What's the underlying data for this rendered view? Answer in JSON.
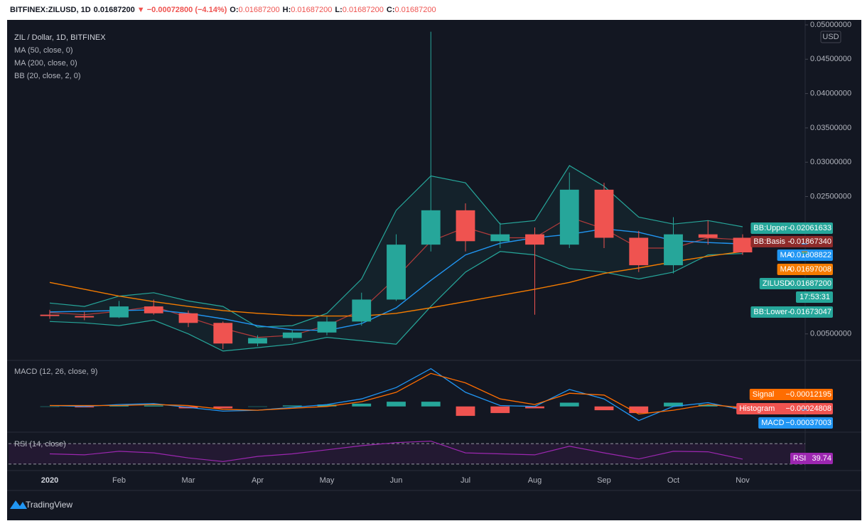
{
  "header": {
    "symbol": "BITFINEX:ZILUSD, 1D",
    "price": "0.01687200",
    "change": "▼ −0.00072800 (−4.14%)",
    "ohlc": [
      {
        "key": "O:",
        "value": "0.01687200"
      },
      {
        "key": "H:",
        "value": "0.01687200"
      },
      {
        "key": "L:",
        "value": "0.01687200"
      },
      {
        "key": "C:",
        "value": "0.01687200"
      }
    ]
  },
  "brand": "TradingView",
  "chart_data": [
    {
      "type": "candlestick",
      "title": "ZIL / Dollar, 1D, BITFINEX",
      "currency": "USD",
      "categories": [
        "2020",
        null,
        "Feb",
        null,
        "Mar",
        null,
        "Apr",
        null,
        "May",
        null,
        "Jun",
        null,
        "Jul",
        null,
        "Aug",
        null,
        "Sep",
        null,
        "Oct",
        null,
        "Nov"
      ],
      "open": [
        0.0078,
        0.0076,
        0.0074,
        0.009,
        0.008,
        0.0066,
        0.0036,
        0.0044,
        0.0052,
        0.0068,
        0.01,
        0.018,
        0.023,
        0.0185,
        0.0195,
        0.018,
        0.026,
        0.019,
        0.015,
        0.0195,
        0.019
      ],
      "high": [
        0.0085,
        0.0082,
        0.0098,
        0.01,
        0.0084,
        0.0068,
        0.0048,
        0.0056,
        0.0075,
        0.011,
        0.0195,
        0.049,
        0.024,
        0.0212,
        0.0205,
        0.0285,
        0.027,
        0.02,
        0.022,
        0.0215,
        0.0195
      ],
      "low": [
        0.0072,
        0.007,
        0.0073,
        0.0078,
        0.006,
        0.0028,
        0.0032,
        0.004,
        0.0048,
        0.0062,
        0.0098,
        0.017,
        0.017,
        0.0175,
        0.0078,
        0.0175,
        0.0175,
        0.014,
        0.0138,
        0.018,
        0.0165
      ],
      "close": [
        0.0076,
        0.0074,
        0.009,
        0.008,
        0.0066,
        0.0036,
        0.0044,
        0.0052,
        0.0068,
        0.01,
        0.018,
        0.023,
        0.0185,
        0.0195,
        0.018,
        0.026,
        0.019,
        0.015,
        0.0195,
        0.019,
        0.016872
      ],
      "up_color": "#26a69a",
      "down_color": "#ef5350",
      "overlays": [
        {
          "name": "MA (50, close, 0)",
          "color": "#2196f3",
          "values": [
            0.0082,
            0.0083,
            0.0084,
            0.0085,
            0.008,
            0.0072,
            0.0062,
            0.0056,
            0.0055,
            0.0065,
            0.0088,
            0.0128,
            0.0165,
            0.0182,
            0.019,
            0.0195,
            0.0203,
            0.0198,
            0.0186,
            0.0183,
            0.0181
          ]
        },
        {
          "name": "MA (200, close, 0)",
          "color": "#f57c00",
          "values": [
            0.0125,
            0.0115,
            0.0105,
            0.0097,
            0.009,
            0.0084,
            0.008,
            0.0077,
            0.0076,
            0.0076,
            0.008,
            0.0088,
            0.0097,
            0.0106,
            0.0115,
            0.0125,
            0.0138,
            0.0146,
            0.0155,
            0.0163,
            0.017
          ]
        }
      ],
      "bands": {
        "name": "BB (20, close, 2, 0)",
        "color": "#26a69a",
        "basis_color": "#b23b3b",
        "upper": [
          0.0095,
          0.009,
          0.0105,
          0.011,
          0.0098,
          0.009,
          0.006,
          0.0062,
          0.008,
          0.013,
          0.023,
          0.028,
          0.027,
          0.021,
          0.0215,
          0.0295,
          0.0265,
          0.022,
          0.021,
          0.0215,
          0.0206
        ],
        "basis": [
          0.0081,
          0.0078,
          0.0083,
          0.009,
          0.0074,
          0.0058,
          0.0045,
          0.0048,
          0.0062,
          0.0085,
          0.0132,
          0.0185,
          0.0205,
          0.019,
          0.019,
          0.022,
          0.0203,
          0.0175,
          0.0175,
          0.019,
          0.0187
        ],
        "lower": [
          0.0068,
          0.0066,
          0.0062,
          0.007,
          0.005,
          0.0025,
          0.003,
          0.0035,
          0.0045,
          0.004,
          0.0035,
          0.009,
          0.014,
          0.017,
          0.0165,
          0.0145,
          0.014,
          0.013,
          0.014,
          0.0165,
          0.0167
        ]
      },
      "ylim": [
        0.00135,
        0.05
      ],
      "yticks": [
        {
          "value": 0.005,
          "label": "0.00500000"
        },
        {
          "value": 0.025,
          "label": "0.02500000"
        },
        {
          "value": 0.03,
          "label": "0.03000000"
        },
        {
          "value": 0.035,
          "label": "0.03500000"
        },
        {
          "value": 0.04,
          "label": "0.04000000"
        },
        {
          "value": 0.045,
          "label": "0.04500000"
        },
        {
          "value": 0.05,
          "label": "0.05000000"
        }
      ],
      "price_labels": [
        {
          "name": "BB:Upper",
          "value": 0.02061633,
          "color": "#26a69a"
        },
        {
          "name": "BB:Basis",
          "value": {
            "value": 0.0186734,
            "label": "0.01867340"
          },
          "color": "#8e2b2b"
        },
        {
          "name": "MA",
          "value": 0.01808822,
          "color": "#2196f3"
        },
        {
          "name": "MA",
          "value": 0.01697008,
          "color": "#f57c00"
        },
        {
          "name": "ZILUSD",
          "value": {
            "value": 0.016872,
            "label": "0.01687200"
          },
          "color": "#26a69a"
        },
        {
          "name": "BB:Lower",
          "value": 0.01673047,
          "color": "#26a69a"
        }
      ],
      "countdown": "17:53:31"
    },
    {
      "type": "macd",
      "title": "MACD (12, 26, close, 9)",
      "ylim": [
        -0.0025,
        0.0045
      ],
      "series": [
        {
          "name": "MACD",
          "color": "#2196f3",
          "values": [
            0.0001,
            0.0,
            0.0002,
            0.0003,
            -0.0001,
            -0.0005,
            -0.0004,
            -0.0001,
            0.0002,
            0.0008,
            0.002,
            0.004,
            0.0015,
            0.0001,
            0.0,
            0.0018,
            0.0008,
            -0.0015,
            0.0,
            0.0004,
            -0.00037003
          ],
          "last": {
            "value": -0.00037003,
            "label": "−0.00037003"
          }
        },
        {
          "name": "Signal",
          "color": "#ff6d00",
          "values": [
            0.0001,
            0.0001,
            0.0001,
            0.0002,
            0.0001,
            -0.0003,
            -0.0004,
            -0.0002,
            0.0,
            0.0005,
            0.0015,
            0.0035,
            0.0025,
            0.0008,
            0.0002,
            0.0014,
            0.0012,
            -0.0008,
            -0.0004,
            0.0002,
            -0.00012195
          ],
          "last": {
            "value": -0.00012195,
            "label": "−0.00012195"
          }
        }
      ],
      "histogram": {
        "name": "Histogram",
        "up_color": "#26a69a",
        "down_color": "#ef5350",
        "values": [
          0.0,
          -0.0001,
          0.0001,
          0.0001,
          -0.0002,
          -0.0002,
          0.0,
          0.0001,
          0.0002,
          0.0003,
          0.0005,
          0.0005,
          -0.001,
          -0.0007,
          -0.0002,
          0.0004,
          -0.0004,
          -0.0007,
          0.0004,
          0.0002,
          -0.00024808
        ],
        "last": {
          "value": -0.00024808,
          "label": "−0.00024808"
        }
      }
    },
    {
      "type": "line",
      "title": "RSI (14, close)",
      "name": "RSI",
      "color": "#9c27b0",
      "ylim": [
        20,
        87
      ],
      "bands": [
        30,
        70
      ],
      "values": [
        50,
        48,
        55,
        52,
        42,
        35,
        45,
        50,
        58,
        66,
        72,
        75,
        52,
        50,
        48,
        65,
        52,
        40,
        55,
        54,
        39.74
      ],
      "last": 39.74
    }
  ]
}
